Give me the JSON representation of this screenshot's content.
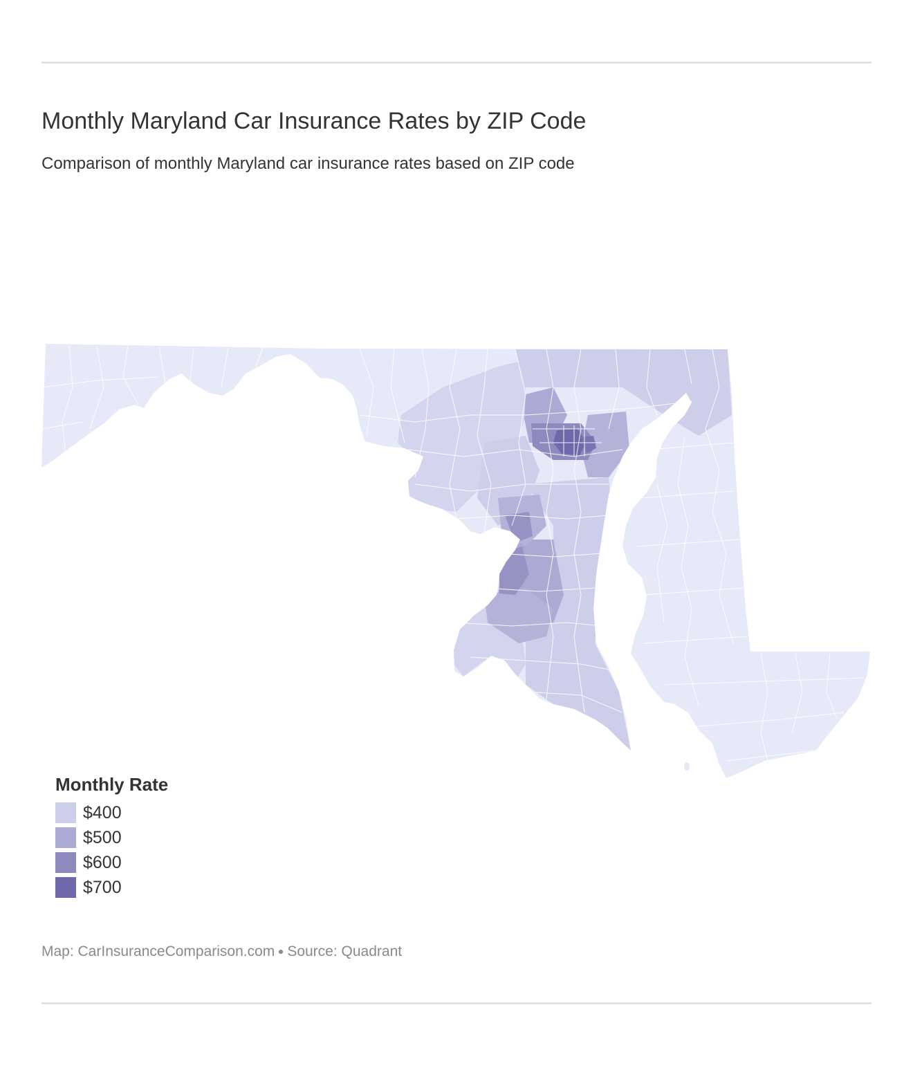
{
  "header": {
    "title": "Monthly Maryland Car Insurance Rates by ZIP Code",
    "subtitle": "Comparison of monthly Maryland car insurance rates based on ZIP code"
  },
  "legend": {
    "title": "Monthly Rate",
    "items": [
      {
        "label": "$400",
        "color": "#ccceea"
      },
      {
        "label": "$500",
        "color": "#abaad4"
      },
      {
        "label": "$600",
        "color": "#8e8abd"
      },
      {
        "label": "$700",
        "color": "#6f68ab"
      }
    ]
  },
  "map": {
    "region": "Maryland",
    "base_color": "#e5e9f8",
    "border_color": "#ffffff"
  },
  "footer": {
    "map_credit": "Map: CarInsuranceComparison.com",
    "source": "Source: Quadrant"
  }
}
